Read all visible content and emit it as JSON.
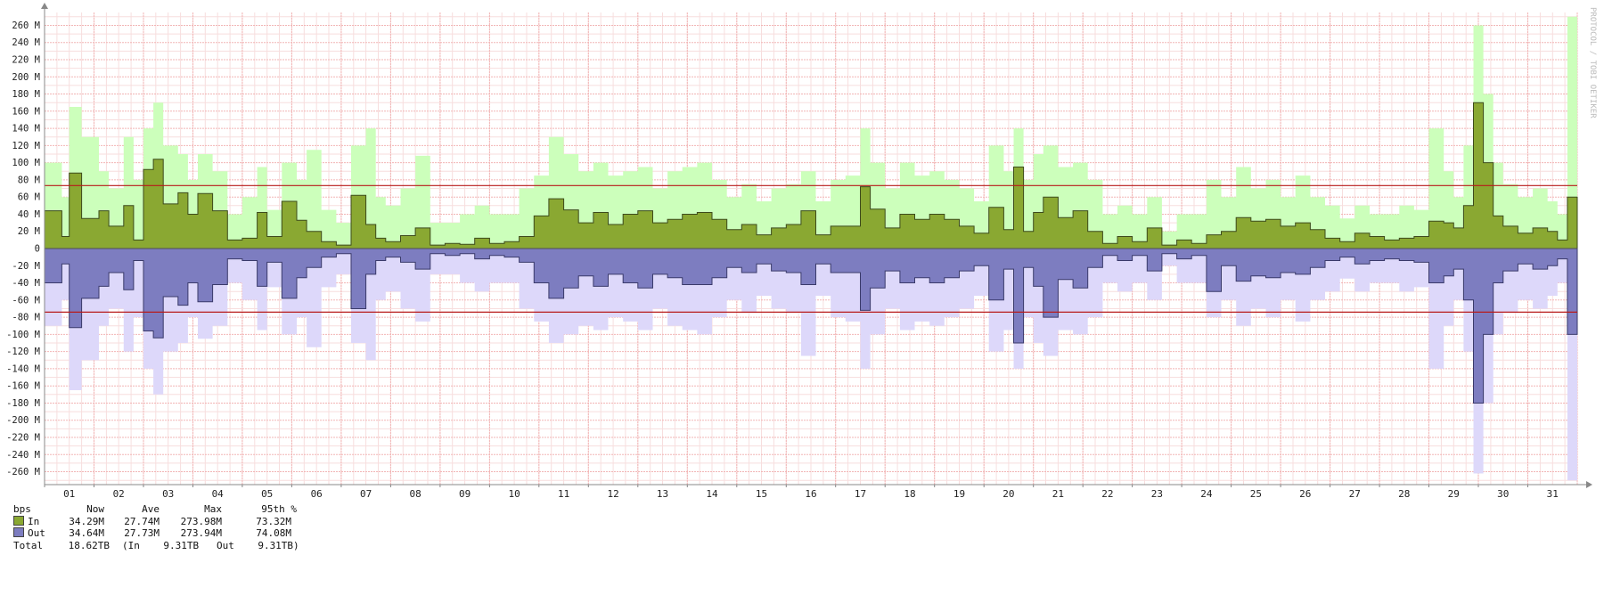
{
  "watermark": "PROTOCOL / TOBI OETIKER",
  "chart_data": {
    "type": "area",
    "x_unit": "day",
    "xlim": [
      0.5,
      31.5
    ],
    "ylim": [
      -275,
      275
    ],
    "ytick_step": 20,
    "ytick_suffix": " M",
    "ytick_labels": [
      "260 M",
      "240 M",
      "220 M",
      "200 M",
      "180 M",
      "160 M",
      "140 M",
      "120 M",
      "100 M",
      "80 M",
      "60 M",
      "40 M",
      "20 M",
      "0",
      "-20 M",
      "-40 M",
      "-60 M",
      "-80 M",
      "-100 M",
      "-120 M",
      "-140 M",
      "-160 M",
      "-180 M",
      "-200 M",
      "-220 M",
      "-240 M",
      "-260 M"
    ],
    "xtick_labels": [
      "01",
      "02",
      "03",
      "04",
      "05",
      "06",
      "07",
      "08",
      "09",
      "10",
      "11",
      "12",
      "13",
      "14",
      "15",
      "16",
      "17",
      "18",
      "19",
      "20",
      "21",
      "22",
      "23",
      "24",
      "25",
      "26",
      "27",
      "28",
      "29",
      "30",
      "31"
    ],
    "grid": true,
    "percentile_lines": [
      73.32,
      -74.08
    ],
    "colors": {
      "in_avg": "#8aa832",
      "in_max": "#ccffbb",
      "out_avg": "#7d7dc0",
      "out_max": "#ddd8fa",
      "outline": "#3d4a1c",
      "percentile": "#b81a1a",
      "grid_major": "#f2b5b5",
      "grid_minor": "#f7dede",
      "axis": "#888888"
    },
    "series": [
      {
        "name": "In",
        "kind": "average",
        "x": [
          0.5,
          0.85,
          1.0,
          1.25,
          1.6,
          1.8,
          2.1,
          2.3,
          2.5,
          2.7,
          2.9,
          3.2,
          3.4,
          3.6,
          3.9,
          4.2,
          4.5,
          4.8,
          5.0,
          5.3,
          5.6,
          5.8,
          6.1,
          6.4,
          6.7,
          7.0,
          7.2,
          7.4,
          7.7,
          8.0,
          8.3,
          8.6,
          8.9,
          9.2,
          9.5,
          9.8,
          10.1,
          10.4,
          10.7,
          11.0,
          11.3,
          11.6,
          11.9,
          12.2,
          12.5,
          12.8,
          13.1,
          13.4,
          13.7,
          14.0,
          14.3,
          14.6,
          14.9,
          15.2,
          15.5,
          15.8,
          16.1,
          16.4,
          16.7,
          17.0,
          17.2,
          17.5,
          17.8,
          18.1,
          18.4,
          18.7,
          19.0,
          19.3,
          19.6,
          19.9,
          20.1,
          20.3,
          20.5,
          20.7,
          21.0,
          21.3,
          21.6,
          21.9,
          22.2,
          22.5,
          22.8,
          23.1,
          23.4,
          23.7,
          24.0,
          24.3,
          24.6,
          24.9,
          25.2,
          25.5,
          25.8,
          26.1,
          26.4,
          26.7,
          27.0,
          27.3,
          27.6,
          27.9,
          28.2,
          28.5,
          28.8,
          29.0,
          29.2,
          29.4,
          29.6,
          29.8,
          30.0,
          30.3,
          30.6,
          30.9,
          31.1,
          31.3,
          31.5
        ],
        "y": [
          44,
          14,
          88,
          35,
          44,
          26,
          50,
          10,
          92,
          104,
          52,
          65,
          40,
          64,
          44,
          10,
          12,
          42,
          14,
          55,
          33,
          20,
          8,
          4,
          62,
          28,
          12,
          8,
          15,
          24,
          4,
          6,
          5,
          12,
          6,
          8,
          14,
          38,
          58,
          45,
          30,
          42,
          28,
          40,
          44,
          30,
          34,
          40,
          42,
          34,
          22,
          28,
          16,
          24,
          28,
          44,
          16,
          26,
          26,
          72,
          46,
          24,
          40,
          34,
          40,
          34,
          26,
          18,
          48,
          22,
          95,
          20,
          42,
          60,
          36,
          44,
          20,
          6,
          14,
          8,
          24,
          4,
          10,
          6,
          16,
          20,
          36,
          32,
          34,
          26,
          30,
          22,
          12,
          8,
          18,
          14,
          10,
          12,
          14,
          32,
          30,
          24,
          50,
          170,
          100,
          38,
          26,
          18,
          24,
          20,
          10,
          60,
          34
        ]
      },
      {
        "name": "In",
        "kind": "maximum",
        "x": [
          0.5,
          0.85,
          1.0,
          1.25,
          1.6,
          1.8,
          2.1,
          2.3,
          2.5,
          2.7,
          2.9,
          3.2,
          3.4,
          3.6,
          3.9,
          4.2,
          4.5,
          4.8,
          5.0,
          5.3,
          5.6,
          5.8,
          6.1,
          6.4,
          6.7,
          7.0,
          7.2,
          7.4,
          7.7,
          8.0,
          8.3,
          8.6,
          8.9,
          9.2,
          9.5,
          9.8,
          10.1,
          10.4,
          10.7,
          11.0,
          11.3,
          11.6,
          11.9,
          12.2,
          12.5,
          12.8,
          13.1,
          13.4,
          13.7,
          14.0,
          14.3,
          14.6,
          14.9,
          15.2,
          15.5,
          15.8,
          16.1,
          16.4,
          16.7,
          17.0,
          17.2,
          17.5,
          17.8,
          18.1,
          18.4,
          18.7,
          19.0,
          19.3,
          19.6,
          19.9,
          20.1,
          20.3,
          20.5,
          20.7,
          21.0,
          21.3,
          21.6,
          21.9,
          22.2,
          22.5,
          22.8,
          23.1,
          23.4,
          23.7,
          24.0,
          24.3,
          24.6,
          24.9,
          25.2,
          25.5,
          25.8,
          26.1,
          26.4,
          26.7,
          27.0,
          27.3,
          27.6,
          27.9,
          28.2,
          28.5,
          28.8,
          29.0,
          29.2,
          29.4,
          29.6,
          29.8,
          30.0,
          30.3,
          30.6,
          30.9,
          31.1,
          31.3,
          31.5
        ],
        "y": [
          100,
          60,
          165,
          130,
          90,
          70,
          130,
          80,
          140,
          170,
          120,
          110,
          80,
          110,
          90,
          40,
          60,
          95,
          45,
          100,
          80,
          115,
          45,
          30,
          120,
          140,
          60,
          50,
          70,
          108,
          30,
          30,
          40,
          50,
          40,
          40,
          70,
          85,
          130,
          110,
          90,
          100,
          85,
          90,
          95,
          70,
          90,
          95,
          100,
          80,
          60,
          75,
          55,
          70,
          75,
          90,
          55,
          80,
          85,
          140,
          100,
          70,
          100,
          85,
          90,
          80,
          70,
          55,
          120,
          90,
          140,
          80,
          110,
          120,
          95,
          100,
          80,
          40,
          50,
          40,
          60,
          20,
          40,
          40,
          80,
          60,
          95,
          70,
          80,
          60,
          85,
          60,
          50,
          35,
          50,
          40,
          40,
          50,
          45,
          140,
          90,
          60,
          120,
          260,
          180,
          100,
          75,
          60,
          70,
          55,
          40,
          270,
          80
        ]
      },
      {
        "name": "Out",
        "kind": "average",
        "x": [
          0.5,
          0.85,
          1.0,
          1.25,
          1.6,
          1.8,
          2.1,
          2.3,
          2.5,
          2.7,
          2.9,
          3.2,
          3.4,
          3.6,
          3.9,
          4.2,
          4.5,
          4.8,
          5.0,
          5.3,
          5.6,
          5.8,
          6.1,
          6.4,
          6.7,
          7.0,
          7.2,
          7.4,
          7.7,
          8.0,
          8.3,
          8.6,
          8.9,
          9.2,
          9.5,
          9.8,
          10.1,
          10.4,
          10.7,
          11.0,
          11.3,
          11.6,
          11.9,
          12.2,
          12.5,
          12.8,
          13.1,
          13.4,
          13.7,
          14.0,
          14.3,
          14.6,
          14.9,
          15.2,
          15.5,
          15.8,
          16.1,
          16.4,
          16.7,
          17.0,
          17.2,
          17.5,
          17.8,
          18.1,
          18.4,
          18.7,
          19.0,
          19.3,
          19.6,
          19.9,
          20.1,
          20.3,
          20.5,
          20.7,
          21.0,
          21.3,
          21.6,
          21.9,
          22.2,
          22.5,
          22.8,
          23.1,
          23.4,
          23.7,
          24.0,
          24.3,
          24.6,
          24.9,
          25.2,
          25.5,
          25.8,
          26.1,
          26.4,
          26.7,
          27.0,
          27.3,
          27.6,
          27.9,
          28.2,
          28.5,
          28.8,
          29.0,
          29.2,
          29.4,
          29.6,
          29.8,
          30.0,
          30.3,
          30.6,
          30.9,
          31.1,
          31.3,
          31.5
        ],
        "y": [
          -40,
          -18,
          -92,
          -58,
          -44,
          -28,
          -48,
          -14,
          -96,
          -104,
          -56,
          -66,
          -40,
          -62,
          -42,
          -12,
          -14,
          -44,
          -16,
          -58,
          -34,
          -22,
          -10,
          -6,
          -70,
          -30,
          -14,
          -10,
          -16,
          -24,
          -6,
          -8,
          -6,
          -12,
          -8,
          -10,
          -16,
          -40,
          -58,
          -46,
          -32,
          -44,
          -30,
          -40,
          -46,
          -30,
          -34,
          -42,
          -42,
          -34,
          -22,
          -28,
          -18,
          -26,
          -28,
          -42,
          -18,
          -28,
          -28,
          -72,
          -46,
          -26,
          -40,
          -34,
          -40,
          -34,
          -26,
          -20,
          -60,
          -24,
          -110,
          -22,
          -44,
          -80,
          -36,
          -46,
          -22,
          -8,
          -14,
          -8,
          -26,
          -6,
          -12,
          -8,
          -50,
          -20,
          -38,
          -32,
          -34,
          -28,
          -30,
          -22,
          -14,
          -10,
          -18,
          -14,
          -12,
          -14,
          -16,
          -40,
          -32,
          -24,
          -60,
          -180,
          -100,
          -40,
          -26,
          -18,
          -24,
          -20,
          -12,
          -100,
          -34
        ]
      },
      {
        "name": "Out",
        "kind": "maximum",
        "x": [
          0.5,
          0.85,
          1.0,
          1.25,
          1.6,
          1.8,
          2.1,
          2.3,
          2.5,
          2.7,
          2.9,
          3.2,
          3.4,
          3.6,
          3.9,
          4.2,
          4.5,
          4.8,
          5.0,
          5.3,
          5.6,
          5.8,
          6.1,
          6.4,
          6.7,
          7.0,
          7.2,
          7.4,
          7.7,
          8.0,
          8.3,
          8.6,
          8.9,
          9.2,
          9.5,
          9.8,
          10.1,
          10.4,
          10.7,
          11.0,
          11.3,
          11.6,
          11.9,
          12.2,
          12.5,
          12.8,
          13.1,
          13.4,
          13.7,
          14.0,
          14.3,
          14.6,
          14.9,
          15.2,
          15.5,
          15.8,
          16.1,
          16.4,
          16.7,
          17.0,
          17.2,
          17.5,
          17.8,
          18.1,
          18.4,
          18.7,
          19.0,
          19.3,
          19.6,
          19.9,
          20.1,
          20.3,
          20.5,
          20.7,
          21.0,
          21.3,
          21.6,
          21.9,
          22.2,
          22.5,
          22.8,
          23.1,
          23.4,
          23.7,
          24.0,
          24.3,
          24.6,
          24.9,
          25.2,
          25.5,
          25.8,
          26.1,
          26.4,
          26.7,
          27.0,
          27.3,
          27.6,
          27.9,
          28.2,
          28.5,
          28.8,
          29.0,
          29.2,
          29.4,
          29.6,
          29.8,
          30.0,
          30.3,
          30.6,
          30.9,
          31.1,
          31.3,
          31.5
        ],
        "y": [
          -90,
          -60,
          -165,
          -130,
          -90,
          -70,
          -120,
          -80,
          -140,
          -170,
          -120,
          -110,
          -80,
          -105,
          -90,
          -40,
          -60,
          -95,
          -45,
          -100,
          -80,
          -115,
          -45,
          -30,
          -110,
          -130,
          -60,
          -50,
          -70,
          -85,
          -30,
          -30,
          -40,
          -50,
          -40,
          -40,
          -70,
          -85,
          -110,
          -100,
          -90,
          -95,
          -80,
          -85,
          -95,
          -70,
          -90,
          -95,
          -100,
          -80,
          -60,
          -75,
          -55,
          -70,
          -75,
          -125,
          -55,
          -80,
          -85,
          -140,
          -100,
          -70,
          -95,
          -85,
          -90,
          -80,
          -70,
          -55,
          -120,
          -95,
          -140,
          -80,
          -110,
          -125,
          -95,
          -100,
          -80,
          -40,
          -50,
          -40,
          -60,
          -20,
          -40,
          -40,
          -80,
          -60,
          -90,
          -70,
          -80,
          -60,
          -85,
          -60,
          -50,
          -35,
          -50,
          -40,
          -40,
          -50,
          -45,
          -140,
          -90,
          -60,
          -120,
          -262,
          -180,
          -100,
          -75,
          -60,
          -70,
          -55,
          -40,
          -270,
          -80
        ]
      }
    ]
  },
  "legend": {
    "unit": "bps",
    "headers": [
      "Now",
      "Ave",
      "Max",
      "95th %"
    ],
    "rows": [
      {
        "name": "In",
        "color": "#8aa832",
        "now": "34.29M",
        "ave": "27.74M",
        "max": "273.98M",
        "p95": "73.32M"
      },
      {
        "name": "Out",
        "color": "#7d7dc0",
        "now": "34.64M",
        "ave": "27.73M",
        "max": "273.94M",
        "p95": "74.08M"
      }
    ],
    "total_label": "Total",
    "total_value": "18.62TB",
    "total_breakdown": "(In    9.31TB   Out    9.31TB)"
  }
}
